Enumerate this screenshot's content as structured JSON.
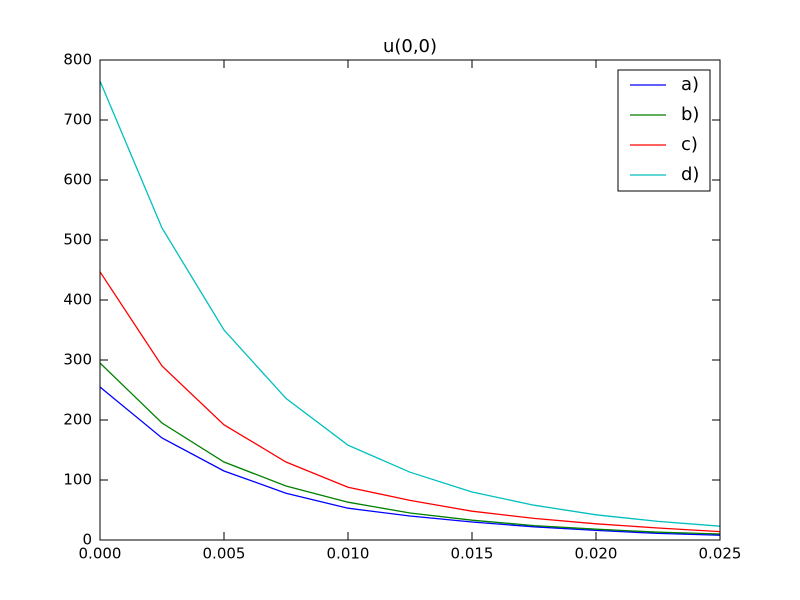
{
  "chart_data": {
    "type": "line",
    "title": "u(0,0)",
    "x": [
      0,
      0.0025,
      0.005,
      0.0075,
      0.01,
      0.0125,
      0.015,
      0.0175,
      0.02,
      0.0225,
      0.025
    ],
    "series": [
      {
        "name": "a)",
        "color": "#0000ff",
        "values": [
          255,
          170,
          115,
          78,
          53,
          40,
          30,
          22,
          16,
          11,
          8
        ]
      },
      {
        "name": "b)",
        "color": "#008000",
        "values": [
          295,
          195,
          130,
          90,
          63,
          45,
          33,
          24,
          18,
          13,
          10
        ]
      },
      {
        "name": "c)",
        "color": "#ff0000",
        "values": [
          447,
          290,
          192,
          130,
          88,
          66,
          48,
          36,
          27,
          20,
          14
        ]
      },
      {
        "name": "d)",
        "color": "#00bfbf",
        "values": [
          765,
          520,
          350,
          236,
          158,
          113,
          80,
          58,
          42,
          31,
          23
        ]
      }
    ],
    "xlim": [
      0,
      0.025
    ],
    "xticks": [
      {
        "value": 0,
        "label": "0.000"
      },
      0.005,
      {
        "value": 0.01,
        "label": "0.010"
      },
      0.015,
      {
        "value": 0.02,
        "label": "0.020"
      },
      0.025
    ],
    "ylim": [
      0,
      800
    ],
    "yticks": [
      0,
      100,
      200,
      300,
      400,
      500,
      600,
      700,
      800
    ],
    "legend": "upper right",
    "grid": false
  }
}
